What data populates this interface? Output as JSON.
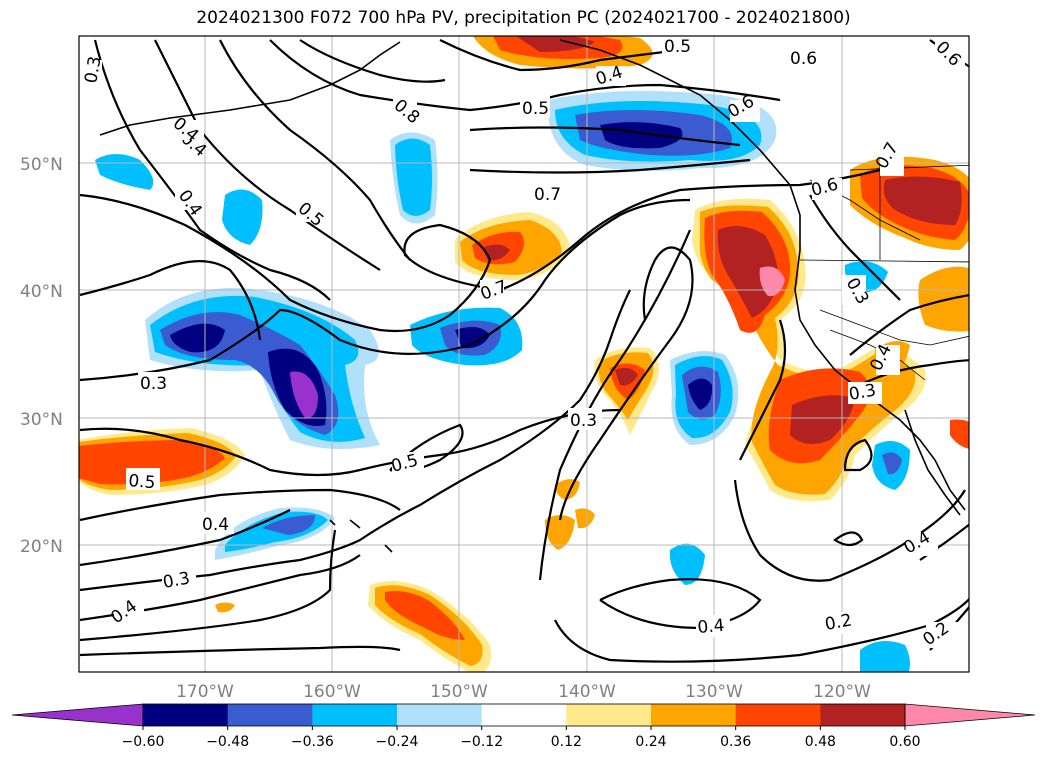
{
  "title": "2024021300 F072 700 hPa PV, precipitation PC (2024021700 - 2024021800)",
  "map": {
    "lon_ticks": [
      "170°W",
      "160°W",
      "150°W",
      "140°W",
      "130°W",
      "120°W"
    ],
    "lat_ticks": [
      "50°N",
      "40°N",
      "30°N",
      "20°N"
    ],
    "extent_lon": [
      -180,
      -110
    ],
    "extent_lat": [
      10,
      60
    ],
    "grid": true
  },
  "contour_labels": [
    "0.3",
    "0.4",
    "0.4",
    "0.4",
    "0.5",
    "0.5",
    "0.8",
    "0.5",
    "0.4",
    "0.6",
    "0.6",
    "0.6",
    "0.7",
    "0.7",
    "0.6",
    "0.7",
    "0.3",
    "0.3",
    "0.3",
    "0.5",
    "0.5",
    "0.4",
    "0.3",
    "0.4",
    "0.4",
    "0.2",
    "0.2",
    "0.4",
    "0.3",
    "0.4"
  ],
  "colorbar": {
    "ticks": [
      "−0.60",
      "−0.48",
      "−0.36",
      "−0.24",
      "−0.12",
      "0.12",
      "0.24",
      "0.36",
      "0.48",
      "0.60"
    ],
    "colors": [
      "#9932cc",
      "#000080",
      "#3b5bd1",
      "#00bfff",
      "#b0e0fa",
      "#ffffff",
      "#ffe98a",
      "#ffa500",
      "#ff4500",
      "#b22222",
      "#ff88aa"
    ]
  }
}
